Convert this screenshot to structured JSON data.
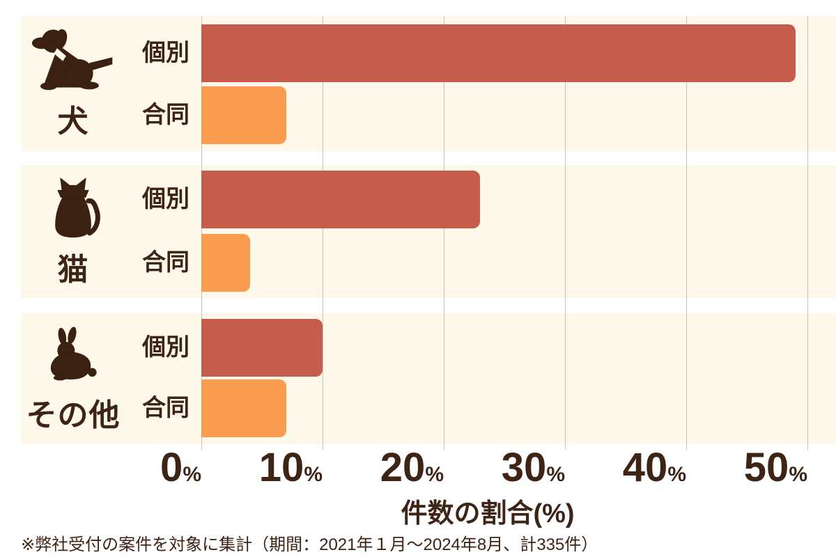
{
  "chart_data": {
    "type": "bar",
    "orientation": "horizontal",
    "title": "",
    "xlabel": "件数の割合(%)",
    "xlim": [
      0,
      50
    ],
    "ticks": [
      "0",
      "10",
      "20",
      "30",
      "40",
      "50"
    ],
    "tick_suffix": "%",
    "grid": true,
    "legend": false,
    "categories": [
      "犬",
      "猫",
      "その他"
    ],
    "series": [
      {
        "name": "個別",
        "color": "#C55C4C",
        "values": [
          49,
          23,
          10
        ]
      },
      {
        "name": "合同",
        "color": "#FA9C50",
        "values": [
          7,
          4,
          7
        ]
      }
    ],
    "groups": [
      {
        "label": "犬",
        "icon": "dog-icon",
        "bars": [
          {
            "name": "個別",
            "value": 49
          },
          {
            "name": "合同",
            "value": 7
          }
        ]
      },
      {
        "label": "猫",
        "icon": "cat-icon",
        "bars": [
          {
            "name": "個別",
            "value": 23
          },
          {
            "name": "合同",
            "value": 4
          }
        ]
      },
      {
        "label": "その他",
        "icon": "rabbit-icon",
        "bars": [
          {
            "name": "個別",
            "value": 10
          },
          {
            "name": "合同",
            "value": 7
          }
        ]
      }
    ]
  },
  "footnote": "※弊社受付の案件を対象に集計（期間：2021年１月～2024年8月、計335件）",
  "colors": {
    "individual_bar": "#C55C4C",
    "joint_bar": "#FA9C50",
    "panel_background": "#FDF8EA",
    "page_background": "#FFFFFF",
    "text_brown": "#3D2414",
    "gridline": "#C9C3B6"
  }
}
